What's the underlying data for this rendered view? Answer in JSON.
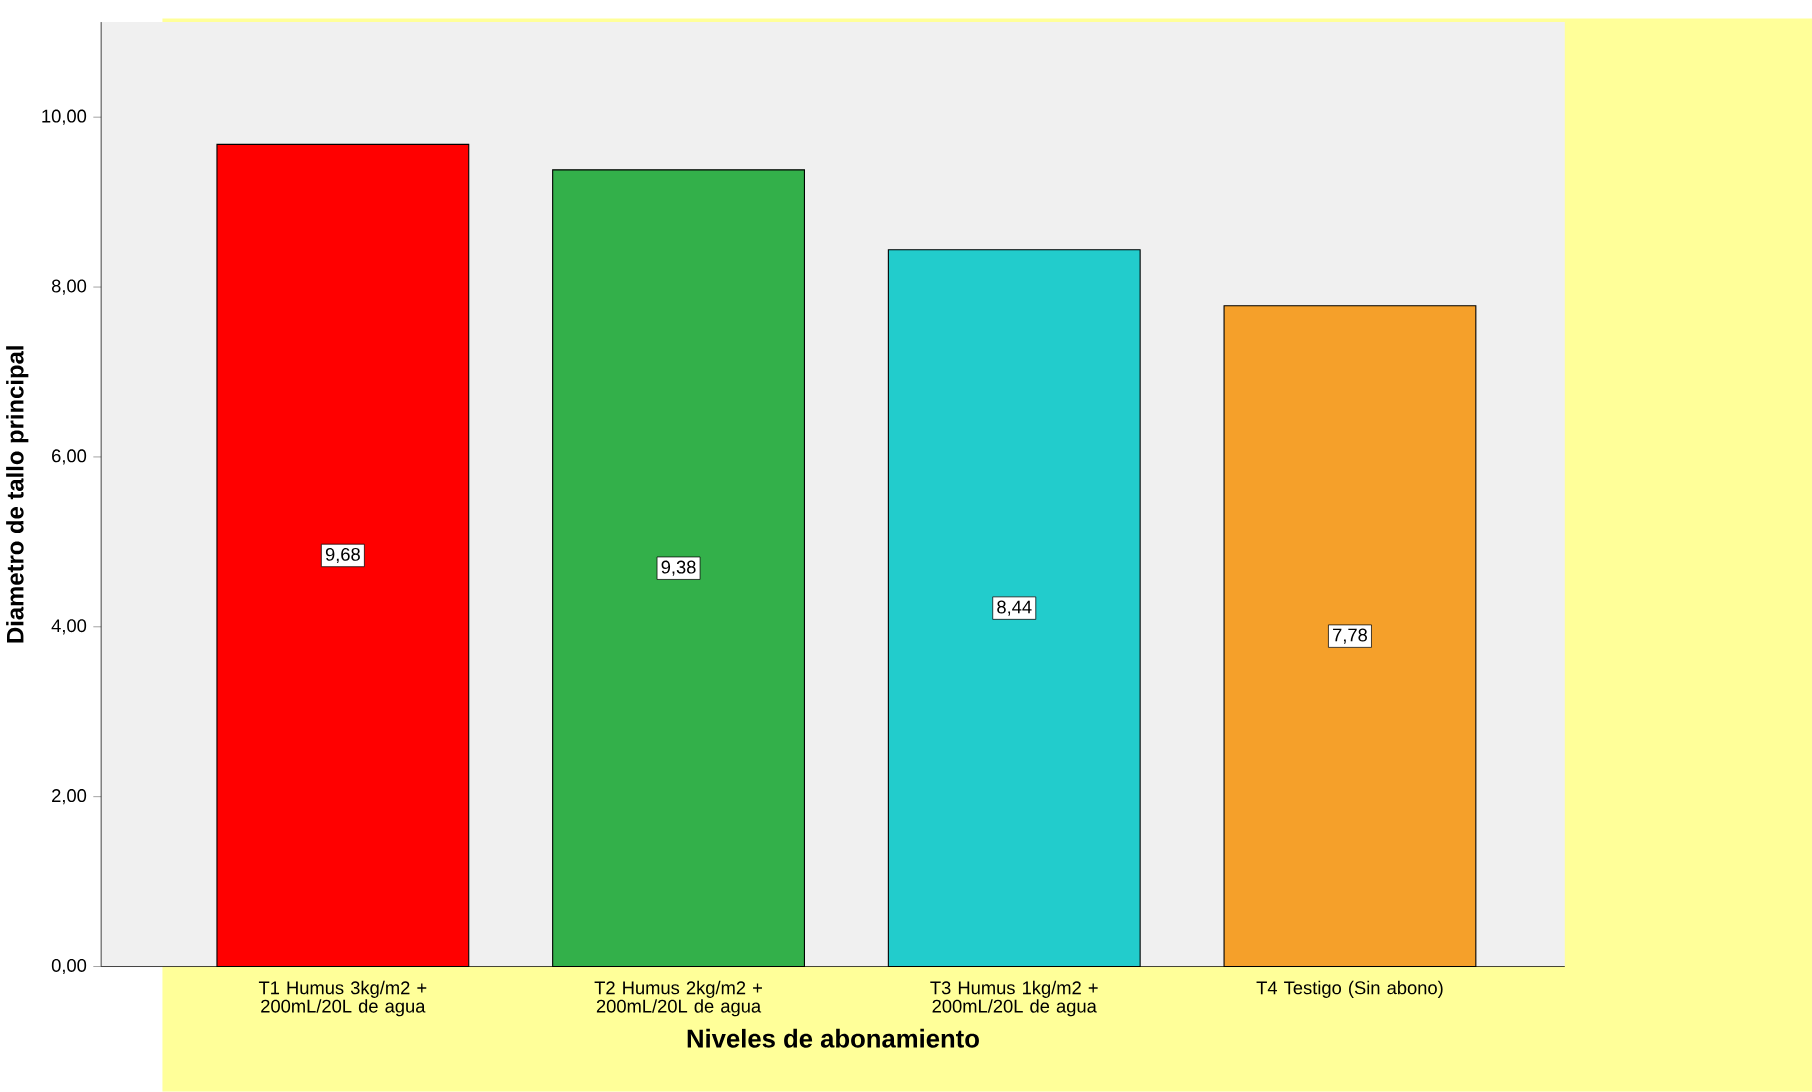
{
  "chart_data": {
    "type": "bar",
    "xlabel": "Niveles de abonamiento",
    "ylabel": "Diametro de tallo principal",
    "categories": [
      "T1 Humus 3kg/m2 + 200mL/20L de agua",
      "T2 Humus 2kg/m2 + 200mL/20L de agua",
      "T3 Humus 1kg/m2 + 200mL/20L de agua",
      "T4 Testigo (Sin abono)"
    ],
    "values": [
      9.68,
      9.38,
      8.44,
      7.78
    ],
    "value_labels": [
      "9,68",
      "9,38",
      "8,44",
      "7,78"
    ],
    "colors": [
      "#ff0000",
      "#33b04a",
      "#22cccc",
      "#f5a02a"
    ],
    "ylim": [
      0,
      11.12
    ],
    "yticks": [
      {
        "value": 0,
        "label": "0,00"
      },
      {
        "value": 2,
        "label": "2,00"
      },
      {
        "value": 4,
        "label": "4,00"
      },
      {
        "value": 6,
        "label": "6,00"
      },
      {
        "value": 8,
        "label": "8,00"
      },
      {
        "value": 10,
        "label": "10,00"
      }
    ]
  }
}
